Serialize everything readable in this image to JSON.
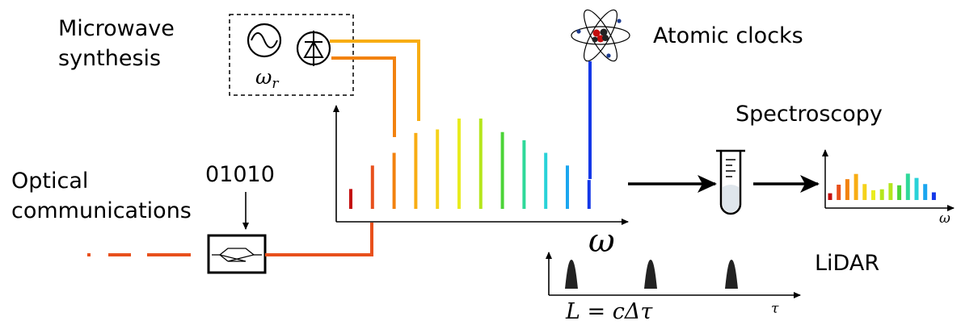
{
  "labels": {
    "microwave_line1": "Microwave",
    "microwave_line2": "synthesis",
    "atomic_clocks": "Atomic clocks",
    "spectroscopy": "Spectroscopy",
    "optical_line1": "Optical",
    "optical_line2": "communications",
    "bits": "01010",
    "lidar": "LiDAR"
  },
  "math": {
    "omega_r": "ω",
    "omega_r_sub": "r",
    "omega_axis": "ω",
    "omega_small": "ω",
    "tau": "τ",
    "lidar_eq": "L = cΔτ"
  },
  "colors": {
    "comb": [
      "#c40f0f",
      "#e8501c",
      "#f2820f",
      "#f8ad13",
      "#f5d21a",
      "#e9ec1f",
      "#b5e61c",
      "#4cd438",
      "#2fd99a",
      "#29d2d8",
      "#1ba6ef",
      "#1438e8"
    ],
    "fiber": "#e8501c",
    "photodiode_wires": [
      "#f8ad13",
      "#f2820f"
    ],
    "atomic_line": "#1438e8",
    "pulse": "#222222"
  },
  "comb_levels": [
    0.22,
    0.48,
    0.62,
    0.84,
    0.88,
    1.0,
    1.0,
    0.85,
    0.76,
    0.62,
    0.48,
    0.32
  ],
  "spectrum_levels": [
    0.22,
    0.5,
    0.68,
    0.85,
    0.52,
    0.32,
    0.35,
    0.55,
    0.48,
    0.86,
    0.72,
    0.52,
    0.25
  ]
}
